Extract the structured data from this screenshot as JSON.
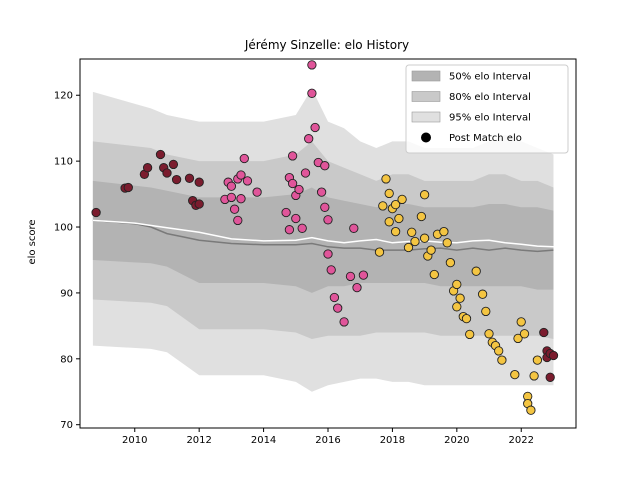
{
  "chart_data": {
    "type": "scatter",
    "title": "Jérémy Sinzelle: elo History",
    "xlabel": "",
    "ylabel": "elo score",
    "xlim": [
      2008.3,
      2023.7
    ],
    "ylim": [
      69.5,
      125.5
    ],
    "x_ticks": [
      2010,
      2012,
      2014,
      2016,
      2018,
      2020,
      2022
    ],
    "y_ticks": [
      70,
      80,
      90,
      100,
      110,
      120
    ],
    "legend_position": "top-right",
    "legend": [
      {
        "label": "50% elo Interval",
        "color": "#b3b3b3",
        "kind": "band"
      },
      {
        "label": "80% elo Interval",
        "color": "#c9c9c9",
        "kind": "band"
      },
      {
        "label": "95% elo Interval",
        "color": "#e0e0e0",
        "kind": "band"
      },
      {
        "label": "Post Match elo",
        "color": "#000000",
        "kind": "marker"
      }
    ],
    "point_colors": [
      "#7b1c2e",
      "#e0559a",
      "#f4c542"
    ],
    "bands": {
      "x": [
        2008.7,
        2010.5,
        2011.0,
        2012.0,
        2013.0,
        2014.0,
        2015.0,
        2015.5,
        2016.0,
        2016.5,
        2017.0,
        2017.5,
        2018.0,
        2018.5,
        2019.0,
        2019.5,
        2020.0,
        2020.5,
        2021.0,
        2021.5,
        2022.0,
        2022.5,
        2023.0
      ],
      "p95_hi": [
        120.5,
        118,
        117,
        116,
        116,
        116,
        117,
        121,
        116,
        115,
        113,
        112,
        113,
        113,
        112,
        112,
        112,
        112,
        113,
        114,
        113,
        112,
        111
      ],
      "p80_hi": [
        113,
        112,
        111,
        110,
        110,
        110,
        111,
        113,
        110,
        109,
        108,
        107,
        108,
        108,
        107,
        107,
        107,
        107,
        108,
        108,
        107,
        107,
        106
      ],
      "p50_hi": [
        107,
        106,
        105.5,
        104.5,
        104.5,
        104.5,
        105,
        106,
        104.5,
        104,
        103.5,
        103,
        103.5,
        103.5,
        103,
        103,
        103,
        103,
        103.5,
        103.5,
        103,
        103,
        102.5
      ],
      "p50_lo": [
        95,
        94.5,
        94,
        91.5,
        91.5,
        91.5,
        91,
        90,
        91,
        91,
        91.5,
        91.5,
        91.5,
        91.5,
        91.5,
        91,
        91,
        91,
        91,
        91,
        91,
        90.5,
        90.5
      ],
      "p80_lo": [
        89,
        88.5,
        88,
        84.5,
        84.5,
        84.5,
        84,
        83,
        83.5,
        83.5,
        83.5,
        84,
        84,
        84,
        84,
        83.5,
        83.5,
        83.5,
        83.5,
        83.5,
        83.5,
        83.5,
        83
      ],
      "p95_lo": [
        82,
        81.5,
        81,
        77.5,
        77.5,
        77.5,
        76.5,
        75,
        76,
        76.5,
        77,
        77,
        76.5,
        76.5,
        76,
        76,
        76,
        76,
        76,
        76,
        76,
        76,
        76
      ]
    },
    "grey_line": {
      "x": [
        2008.7,
        2010.0,
        2010.5,
        2011.0,
        2011.5,
        2012.0,
        2013.0,
        2014.0,
        2015.0,
        2015.5,
        2016.0,
        2016.5,
        2017.0,
        2017.5,
        2018.0,
        2018.5,
        2019.0,
        2019.5,
        2020.0,
        2020.5,
        2021.0,
        2021.5,
        2022.0,
        2022.5,
        2023.0
      ],
      "y": [
        101,
        100.5,
        100,
        99,
        98.5,
        98,
        97.5,
        97.3,
        97.3,
        97.5,
        97,
        96.8,
        96.8,
        96.5,
        96.5,
        96.5,
        96.7,
        96.8,
        96.5,
        96.8,
        96.5,
        96.8,
        96.5,
        96.3,
        96.5
      ]
    },
    "white_line": {
      "x": [
        2008.7,
        2010.0,
        2011.0,
        2012.0,
        2013.0,
        2014.0,
        2015.0,
        2015.5,
        2016.0,
        2016.5,
        2017.0,
        2017.5,
        2018.0,
        2018.5,
        2019.0,
        2019.5,
        2020.0,
        2020.5,
        2021.0,
        2021.5,
        2022.0,
        2022.5,
        2023.0
      ],
      "y": [
        101,
        100.6,
        99.9,
        99.2,
        98.2,
        97.9,
        98.0,
        98.4,
        97.9,
        97.6,
        97.9,
        98.1,
        97.6,
        97.8,
        97.9,
        97.7,
        97.6,
        97.9,
        98.0,
        97.6,
        97.4,
        97.1,
        97.0
      ]
    },
    "series": [
      {
        "x": [
          2008.8,
          2009.7,
          2009.8,
          2010.3,
          2010.4,
          2010.8,
          2010.9,
          2011.0,
          2011.2,
          2011.3,
          2011.7,
          2011.8,
          2011.9,
          2012.0,
          2012.0,
          2022.7,
          2022.8,
          2022.8,
          2022.9,
          2022.9,
          2023.0
        ],
        "y": [
          102.2,
          105.9,
          106,
          108,
          109,
          111,
          109,
          108.2,
          109.5,
          107.2,
          107.4,
          104,
          103.3,
          106.8,
          103.5,
          84,
          81.2,
          80.2,
          80.8,
          77.2,
          80.5
        ]
      },
      {
        "x": [
          2012.8,
          2012.9,
          2013.0,
          2013.0,
          2013.1,
          2013.2,
          2013.2,
          2013.3,
          2013.3,
          2013.4,
          2013.5,
          2013.8,
          2014.7,
          2014.8,
          2014.8,
          2014.9,
          2014.9,
          2015.0,
          2015.0,
          2015.1,
          2015.2,
          2015.3,
          2015.4,
          2015.5,
          2015.5,
          2015.6,
          2015.7,
          2015.8,
          2015.9,
          2015.9,
          2016.0,
          2016.0,
          2016.1,
          2016.2,
          2016.3,
          2016.5,
          2016.7,
          2016.8,
          2016.9,
          2017.1
        ],
        "y": [
          104.2,
          106.8,
          106.2,
          104.5,
          102.7,
          107.3,
          101,
          104.3,
          107.9,
          110.4,
          107,
          105.3,
          102.2,
          99.6,
          107.5,
          110.8,
          106.6,
          104.8,
          101.3,
          105.7,
          99.8,
          108.2,
          113.4,
          120.3,
          124.6,
          115.1,
          109.8,
          105.3,
          103,
          109.3,
          101.1,
          95.9,
          93.5,
          89.3,
          87.7,
          85.6,
          92.5,
          99.8,
          90.8,
          92.7
        ]
      },
      {
        "x": [
          2017.6,
          2017.7,
          2017.8,
          2017.9,
          2017.9,
          2018.0,
          2018.1,
          2018.1,
          2018.2,
          2018.3,
          2018.5,
          2018.6,
          2018.7,
          2018.9,
          2019.0,
          2019.0,
          2019.1,
          2019.2,
          2019.3,
          2019.4,
          2019.6,
          2019.7,
          2019.8,
          2019.9,
          2020.0,
          2020.0,
          2020.1,
          2020.2,
          2020.3,
          2020.4,
          2020.6,
          2020.8,
          2020.9,
          2021.0,
          2021.1,
          2021.2,
          2021.3,
          2021.4,
          2021.8,
          2021.9,
          2022.0,
          2022.1,
          2022.2,
          2022.2,
          2022.3,
          2022.4,
          2022.5
        ],
        "y": [
          96.2,
          103.2,
          107.3,
          100.8,
          105.1,
          102.8,
          103.4,
          99.3,
          101.3,
          104.2,
          96.9,
          99.2,
          97.8,
          101.6,
          98.3,
          104.9,
          95.6,
          96.5,
          92.8,
          98.9,
          99.3,
          97.6,
          94.6,
          90.3,
          87.9,
          91.3,
          89.2,
          86.4,
          86.1,
          83.7,
          93.3,
          89.8,
          87.2,
          83.8,
          82.5,
          82,
          81.2,
          79.8,
          77.6,
          83.1,
          85.6,
          83.8,
          74.3,
          73.2,
          72.2,
          77.4,
          79.8
        ]
      }
    ]
  }
}
